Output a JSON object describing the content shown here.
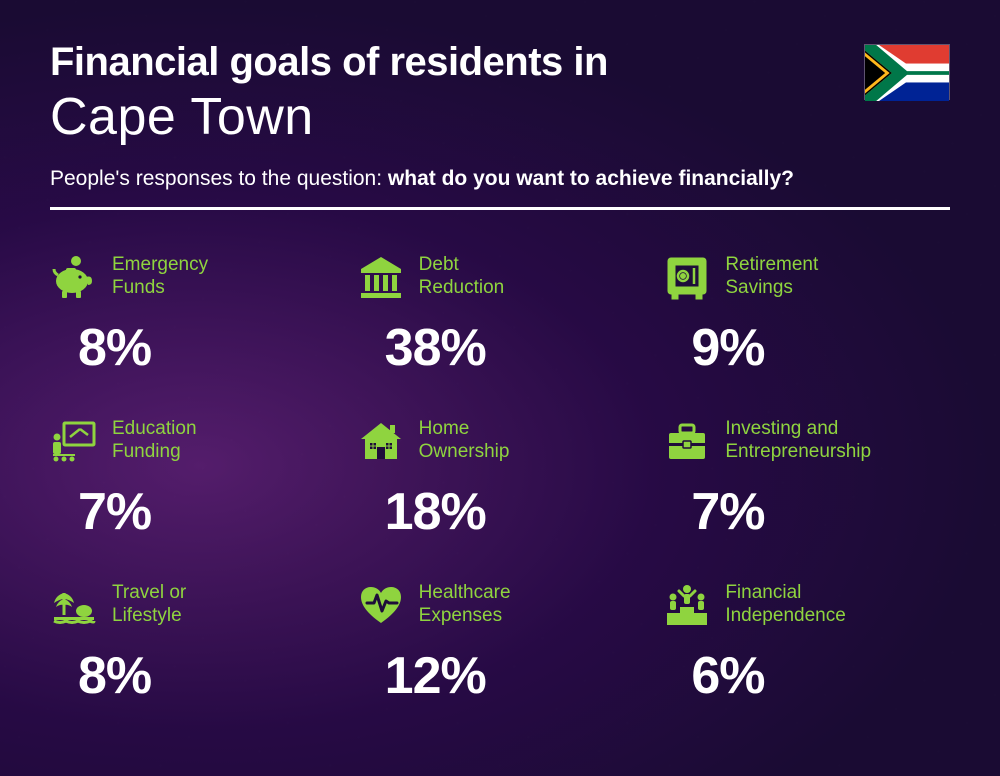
{
  "header": {
    "title_line1": "Financial goals of residents in",
    "title_line2": "Cape Town",
    "subtitle_prefix": "People's responses to the question: ",
    "subtitle_bold": "what do you want to achieve financially?"
  },
  "styling": {
    "accent_color": "#8fd43f",
    "text_color": "#ffffff",
    "background_base": "#1e0d3a",
    "title_line1_fontsize": 40,
    "title_line1_weight": 800,
    "title_line2_fontsize": 52,
    "title_line2_weight": 300,
    "subtitle_fontsize": 21,
    "value_fontsize": 52,
    "value_weight": 800,
    "label_fontsize": 19,
    "divider_thickness": 3,
    "grid_columns": 3,
    "grid_rows": 3
  },
  "flag": {
    "country": "South Africa",
    "colors": {
      "red": "#e03c31",
      "blue": "#002395",
      "green": "#007749",
      "gold": "#ffb81c",
      "black": "#000000",
      "white": "#ffffff"
    }
  },
  "items": [
    {
      "icon": "piggy-bank-icon",
      "label": "Emergency\nFunds",
      "value": "8%"
    },
    {
      "icon": "bank-icon",
      "label": "Debt\nReduction",
      "value": "38%"
    },
    {
      "icon": "safe-icon",
      "label": "Retirement\nSavings",
      "value": "9%"
    },
    {
      "icon": "education-icon",
      "label": "Education\nFunding",
      "value": "7%"
    },
    {
      "icon": "house-icon",
      "label": "Home\nOwnership",
      "value": "18%"
    },
    {
      "icon": "briefcase-icon",
      "label": "Investing and\nEntrepreneurship",
      "value": "7%"
    },
    {
      "icon": "travel-icon",
      "label": "Travel or\nLifestyle",
      "value": "8%"
    },
    {
      "icon": "healthcare-icon",
      "label": "Healthcare\nExpenses",
      "value": "12%"
    },
    {
      "icon": "podium-icon",
      "label": "Financial\nIndependence",
      "value": "6%"
    }
  ]
}
